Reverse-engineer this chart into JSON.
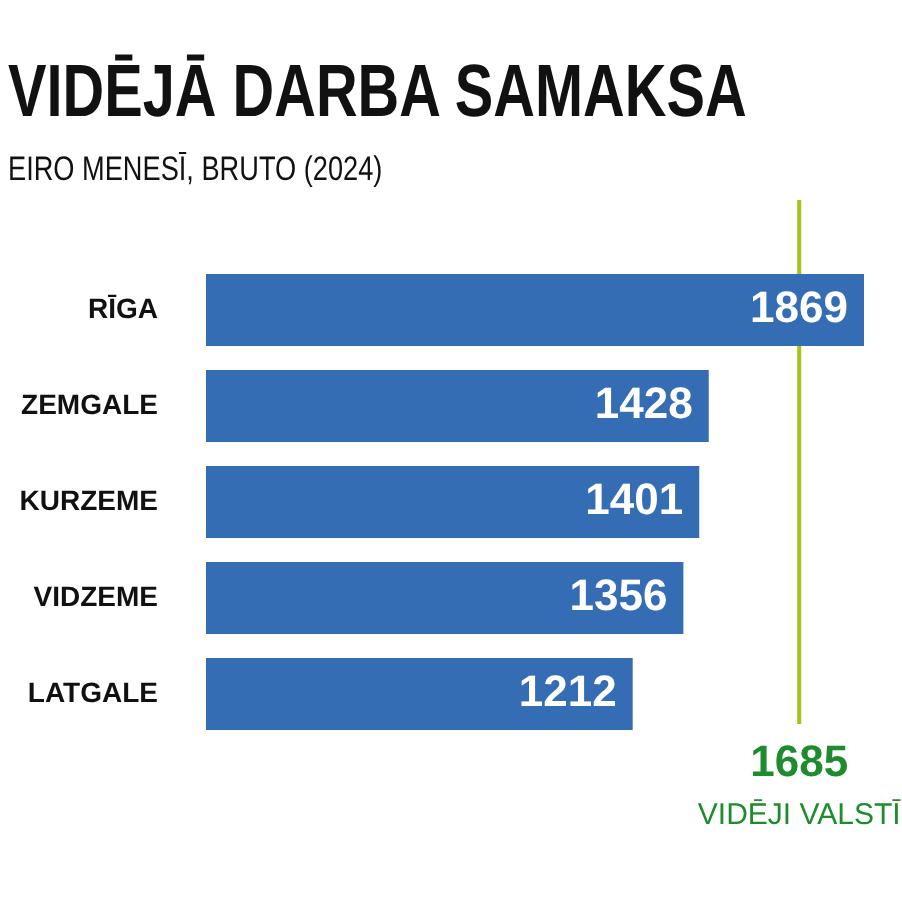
{
  "chart_data": {
    "type": "bar",
    "orientation": "horizontal",
    "title": "VIDĒJĀ DARBA SAMAKSA",
    "subtitle": "EIRO MENESĪ, BRUTO (2024)",
    "categories": [
      "RĪGA",
      "ZEMGALE",
      "KURZEME",
      "VIDZEME",
      "LATGALE"
    ],
    "values": [
      1869,
      1428,
      1401,
      1356,
      1212
    ],
    "color": "#346db3",
    "data_labels": true,
    "tick_labels": "y",
    "legend": false,
    "ref_lines": [
      {
        "axis": "x",
        "value": 1685,
        "label": "1685\nVIDĒJI VALSTĪ",
        "color": "#a3c21a"
      }
    ]
  }
}
